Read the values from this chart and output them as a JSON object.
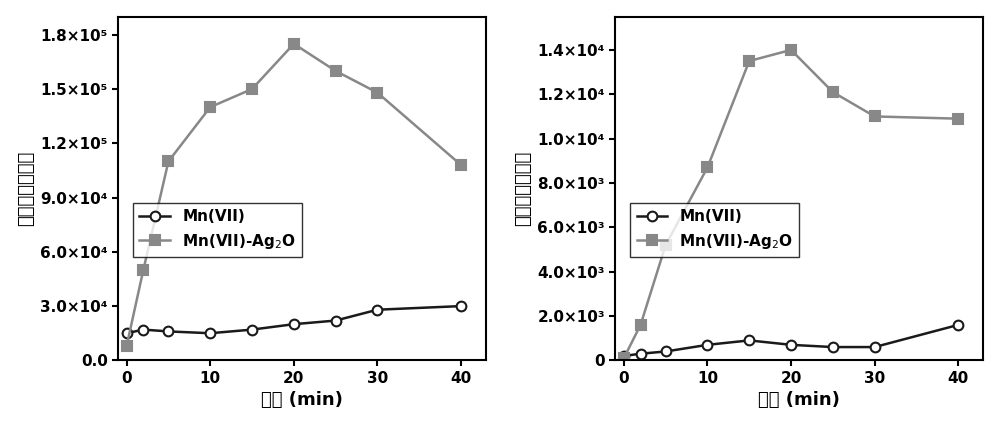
{
  "left_x": [
    0,
    2,
    5,
    10,
    15,
    20,
    25,
    30,
    40
  ],
  "left_mn7": [
    15000,
    17000,
    16000,
    15000,
    17000,
    20000,
    22000,
    28000,
    30000
  ],
  "left_mn7_ag2o": [
    8000,
    50000,
    110000,
    140000,
    150000,
    175000,
    160000,
    148000,
    108000
  ],
  "left_ylim": [
    0,
    190000
  ],
  "left_yticks": [
    0,
    30000,
    60000,
    90000,
    120000,
    150000,
    180000
  ],
  "left_ytick_labels": [
    "0.0",
    "3.0×10⁴",
    "6.0×10⁴",
    "9.0×10⁴",
    "1.2×10⁵",
    "1.5×10⁵",
    "1.8×10⁵"
  ],
  "right_x": [
    0,
    2,
    5,
    10,
    15,
    20,
    25,
    30,
    40
  ],
  "right_mn7": [
    200,
    300,
    400,
    700,
    900,
    700,
    600,
    600,
    1600
  ],
  "right_mn7_ag2o": [
    100,
    1600,
    5200,
    8700,
    13500,
    14000,
    12100,
    11000,
    10900
  ],
  "right_ylim": [
    0,
    15500
  ],
  "right_yticks": [
    0,
    2000,
    4000,
    6000,
    8000,
    10000,
    12000,
    14000
  ],
  "right_ytick_labels": [
    "0",
    "2.0×10³",
    "4.0×10³",
    "6.0×10³",
    "8.0×10³",
    "1.0×10⁴",
    "1.2×10⁴",
    "1.4×10⁴"
  ],
  "xlabel": "时间 (min)",
  "ylabel": "聚合产物峰强度",
  "xticks": [
    0,
    10,
    20,
    30,
    40
  ],
  "line_color_mn7": "#1a1a1a",
  "line_color_ag2o": "#888888",
  "fontsize_tick": 11,
  "fontsize_label": 13,
  "fontsize_legend": 11
}
